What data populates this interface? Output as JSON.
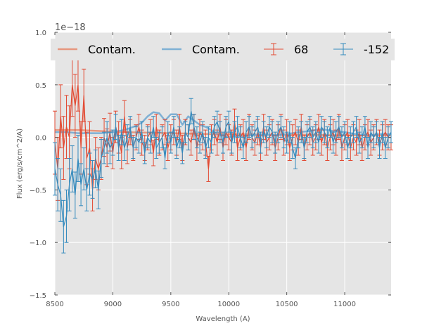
{
  "chart_data": {
    "type": "line",
    "title": "",
    "xlabel": "Wavelength (A)",
    "ylabel": "Flux (erg/s/cm^2/A)",
    "y_offset_label": "1e−18",
    "xlim": [
      8500,
      11400
    ],
    "ylim": [
      -1.5,
      1.0
    ],
    "xticks": [
      8500,
      9000,
      9500,
      10000,
      10500,
      11000
    ],
    "xtick_labels": [
      "8500",
      "9000",
      "9500",
      "10000",
      "10500",
      "11000"
    ],
    "yticks": [
      -1.5,
      -1.0,
      -0.5,
      0.0,
      0.5,
      1.0
    ],
    "ytick_labels": [
      "−1.5",
      "−1.0",
      "−0.5",
      "0.0",
      "0.5",
      "1.0"
    ],
    "grid": true,
    "legend_position": "top",
    "legend": [
      {
        "label": "Contam.",
        "kind": "line",
        "color": "#E6977F"
      },
      {
        "label": "Contam.",
        "kind": "line",
        "color": "#7FB0D4"
      },
      {
        "label": "68",
        "kind": "errorbar",
        "color": "#E24A33"
      },
      {
        "label": "-152",
        "kind": "errorbar",
        "color": "#348ABD"
      }
    ],
    "series": [
      {
        "name": "Contam.",
        "style": "line",
        "color": "#E6977F",
        "x": [
          8500,
          8700,
          8900,
          9100,
          9300,
          9500,
          9700,
          9900,
          10100,
          10300,
          10500,
          10700,
          10900,
          11100,
          11300,
          11400
        ],
        "y": [
          0.07,
          0.07,
          0.06,
          0.05,
          0.045,
          0.04,
          0.035,
          0.03,
          0.03,
          0.025,
          0.025,
          0.025,
          0.02,
          0.02,
          0.02,
          0.02
        ]
      },
      {
        "name": "Contam.",
        "style": "line",
        "color": "#7FB0D4",
        "x": [
          8500,
          8600,
          8700,
          8800,
          8900,
          9000,
          9100,
          9200,
          9250,
          9300,
          9350,
          9400,
          9450,
          9500,
          9550,
          9600,
          9650,
          9700,
          9750,
          9800,
          9850,
          9900,
          9950,
          10000,
          10050,
          10100,
          10200,
          10300,
          10400,
          10500,
          10600,
          10700,
          10800,
          10900,
          11000,
          11100,
          11200,
          11300,
          11400
        ],
        "y": [
          0.05,
          0.05,
          0.04,
          0.04,
          0.04,
          0.05,
          0.07,
          0.11,
          0.14,
          0.2,
          0.24,
          0.23,
          0.16,
          0.22,
          0.22,
          0.12,
          0.2,
          0.16,
          0.12,
          0.1,
          0.07,
          0.03,
          0.02,
          0.0,
          0.01,
          0.01,
          0.02,
          0.03,
          0.02,
          0.03,
          0.05,
          0.06,
          0.08,
          0.06,
          0.05,
          0.03,
          0.02,
          0.03,
          0.03
        ]
      },
      {
        "name": "68",
        "style": "errorbar",
        "color": "#E24A33",
        "x": [
          8500,
          8525,
          8550,
          8575,
          8600,
          8625,
          8650,
          8675,
          8700,
          8725,
          8750,
          8775,
          8800,
          8825,
          8850,
          8875,
          8900,
          8925,
          8950,
          8975,
          9000,
          9025,
          9050,
          9075,
          9100,
          9125,
          9150,
          9175,
          9200,
          9225,
          9250,
          9275,
          9300,
          9325,
          9350,
          9375,
          9400,
          9425,
          9450,
          9475,
          9500,
          9525,
          9550,
          9575,
          9600,
          9625,
          9650,
          9675,
          9700,
          9725,
          9750,
          9775,
          9800,
          9825,
          9850,
          9875,
          9900,
          9925,
          9950,
          9975,
          10000,
          10025,
          10050,
          10075,
          10100,
          10125,
          10150,
          10175,
          10200,
          10225,
          10250,
          10275,
          10300,
          10325,
          10350,
          10375,
          10400,
          10425,
          10450,
          10475,
          10500,
          10525,
          10550,
          10575,
          10600,
          10625,
          10650,
          10675,
          10700,
          10725,
          10750,
          10775,
          10800,
          10825,
          10850,
          10875,
          10900,
          10925,
          10950,
          10975,
          11000,
          11025,
          11050,
          11075,
          11100,
          11125,
          11150,
          11175,
          11200,
          11225,
          11250,
          11275,
          11300,
          11325,
          11350,
          11375,
          11400
        ],
        "y": [
          -0.05,
          -0.3,
          0.2,
          -0.1,
          0.1,
          0.0,
          0.5,
          0.3,
          0.5,
          -0.1,
          0.4,
          -0.2,
          -0.1,
          -0.5,
          -0.2,
          -0.3,
          -0.2,
          0.0,
          -0.1,
          0.05,
          -0.15,
          0.1,
          0.0,
          -0.15,
          0.2,
          -0.1,
          0.05,
          -0.1,
          0.0,
          0.1,
          -0.05,
          -0.1,
          0.0,
          0.05,
          -0.15,
          0.1,
          -0.05,
          0.0,
          0.05,
          -0.1,
          0.0,
          0.05,
          -0.05,
          0.1,
          -0.1,
          0.05,
          0.0,
          -0.05,
          0.1,
          -0.1,
          0.05,
          0.0,
          -0.05,
          -0.3,
          0.0,
          0.05,
          -0.05,
          0.1,
          -0.1,
          0.05,
          0.0,
          -0.05,
          0.15,
          -0.1,
          0.0,
          0.05,
          -0.1,
          0.1,
          0.0,
          -0.05,
          0.05,
          -0.1,
          0.1,
          -0.05,
          0.0,
          0.05,
          -0.1,
          0.0,
          0.1,
          -0.05,
          0.05,
          -0.1,
          0.0,
          0.05,
          -0.05,
          0.1,
          -0.1,
          0.0,
          0.05,
          -0.05,
          0.0,
          0.1,
          -0.05,
          0.05,
          -0.1,
          0.0,
          0.05,
          -0.05,
          0.1,
          -0.1,
          0.0,
          0.05,
          -0.1,
          0.0,
          -0.05,
          0.05,
          -0.1,
          0.0,
          0.05,
          -0.05,
          0.0,
          0.05,
          -0.05,
          0.0,
          0.05,
          0.0,
          0.0
        ],
        "err": [
          0.3,
          0.3,
          0.3,
          0.3,
          0.3,
          0.3,
          0.3,
          0.3,
          0.25,
          0.25,
          0.25,
          0.25,
          0.25,
          0.2,
          0.2,
          0.2,
          0.2,
          0.18,
          0.18,
          0.18,
          0.15,
          0.15,
          0.15,
          0.15,
          0.15,
          0.15,
          0.12,
          0.12,
          0.12,
          0.12,
          0.12,
          0.12,
          0.12,
          0.12,
          0.12,
          0.12,
          0.12,
          0.12,
          0.12,
          0.12,
          0.12,
          0.12,
          0.12,
          0.12,
          0.12,
          0.12,
          0.12,
          0.12,
          0.12,
          0.12,
          0.12,
          0.12,
          0.12,
          0.12,
          0.12,
          0.12,
          0.12,
          0.12,
          0.12,
          0.12,
          0.12,
          0.12,
          0.12,
          0.12,
          0.12,
          0.12,
          0.12,
          0.12,
          0.12,
          0.12,
          0.12,
          0.12,
          0.12,
          0.12,
          0.12,
          0.12,
          0.12,
          0.12,
          0.12,
          0.12,
          0.12,
          0.12,
          0.12,
          0.12,
          0.12,
          0.12,
          0.12,
          0.12,
          0.12,
          0.12,
          0.12,
          0.12,
          0.12,
          0.12,
          0.12,
          0.12,
          0.12,
          0.12,
          0.12,
          0.12,
          0.12,
          0.12,
          0.12,
          0.12,
          0.12,
          0.12,
          0.12,
          0.12,
          0.12,
          0.12,
          0.12,
          0.12,
          0.12,
          0.12,
          0.12,
          0.12,
          0.12
        ]
      },
      {
        "name": "-152",
        "style": "errorbar",
        "color": "#348ABD",
        "x": [
          8500,
          8525,
          8550,
          8575,
          8600,
          8625,
          8650,
          8675,
          8700,
          8725,
          8750,
          8775,
          8800,
          8825,
          8850,
          8875,
          8900,
          8925,
          8950,
          8975,
          9000,
          9025,
          9050,
          9075,
          9100,
          9125,
          9150,
          9175,
          9200,
          9225,
          9250,
          9275,
          9300,
          9325,
          9350,
          9375,
          9400,
          9425,
          9450,
          9475,
          9500,
          9525,
          9550,
          9575,
          9600,
          9625,
          9650,
          9675,
          9700,
          9725,
          9750,
          9775,
          9800,
          9825,
          9850,
          9875,
          9900,
          9925,
          9950,
          9975,
          10000,
          10025,
          10050,
          10075,
          10100,
          10125,
          10150,
          10175,
          10200,
          10225,
          10250,
          10275,
          10300,
          10325,
          10350,
          10375,
          10400,
          10425,
          10450,
          10475,
          10500,
          10525,
          10550,
          10575,
          10600,
          10625,
          10650,
          10675,
          10700,
          10725,
          10750,
          10775,
          10800,
          10825,
          10850,
          10875,
          10900,
          10925,
          10950,
          10975,
          11000,
          11025,
          11050,
          11075,
          11100,
          11125,
          11150,
          11175,
          11200,
          11225,
          11250,
          11275,
          11300,
          11325,
          11350,
          11375,
          11400
        ],
        "y": [
          -0.3,
          -0.45,
          -0.55,
          -0.85,
          -0.75,
          -0.45,
          -0.3,
          -0.55,
          -0.2,
          -0.45,
          -0.3,
          -0.5,
          -0.35,
          -0.4,
          -0.3,
          -0.5,
          -0.2,
          -0.1,
          0.0,
          -0.1,
          -0.05,
          0.1,
          -0.1,
          0.05,
          -0.1,
          0.0,
          0.1,
          -0.1,
          0.0,
          -0.05,
          0.05,
          -0.15,
          0.0,
          -0.05,
          0.1,
          -0.1,
          -0.05,
          0.0,
          -0.2,
          0.05,
          -0.05,
          0.1,
          -0.1,
          0.0,
          -0.15,
          0.05,
          0.0,
          0.25,
          0.1,
          0.0,
          -0.05,
          0.05,
          -0.1,
          0.0,
          -0.05,
          0.1,
          0.15,
          0.05,
          -0.05,
          0.1,
          0.15,
          -0.05,
          0.05,
          0.1,
          0.0,
          -0.1,
          0.05,
          0.1,
          0.0,
          0.05,
          0.1,
          -0.05,
          0.05,
          0.0,
          0.1,
          0.05,
          -0.05,
          0.05,
          0.1,
          0.0,
          -0.05,
          0.05,
          -0.1,
          -0.2,
          0.0,
          0.05,
          -0.1,
          0.05,
          0.1,
          0.0,
          0.05,
          -0.05,
          0.1,
          0.05,
          0.0,
          0.1,
          -0.05,
          0.05,
          0.1,
          0.0,
          0.05,
          -0.1,
          0.0,
          0.05,
          0.1,
          -0.05,
          0.0,
          0.1,
          -0.1,
          0.05,
          0.0,
          0.05,
          -0.1,
          0.05,
          -0.1,
          0.0,
          0.05
        ],
        "err": [
          0.25,
          0.25,
          0.25,
          0.25,
          0.25,
          0.25,
          0.22,
          0.22,
          0.22,
          0.2,
          0.2,
          0.2,
          0.2,
          0.18,
          0.18,
          0.18,
          0.18,
          0.15,
          0.15,
          0.15,
          0.12,
          0.12,
          0.12,
          0.12,
          0.12,
          0.12,
          0.1,
          0.1,
          0.1,
          0.1,
          0.1,
          0.1,
          0.1,
          0.1,
          0.1,
          0.1,
          0.1,
          0.1,
          0.1,
          0.1,
          0.1,
          0.1,
          0.1,
          0.1,
          0.1,
          0.1,
          0.12,
          0.12,
          0.12,
          0.1,
          0.1,
          0.1,
          0.1,
          0.1,
          0.1,
          0.1,
          0.1,
          0.1,
          0.1,
          0.1,
          0.1,
          0.1,
          0.1,
          0.1,
          0.1,
          0.1,
          0.1,
          0.1,
          0.1,
          0.1,
          0.1,
          0.1,
          0.1,
          0.1,
          0.1,
          0.1,
          0.1,
          0.1,
          0.1,
          0.1,
          0.1,
          0.1,
          0.1,
          0.1,
          0.1,
          0.1,
          0.1,
          0.1,
          0.1,
          0.1,
          0.1,
          0.1,
          0.1,
          0.1,
          0.1,
          0.1,
          0.1,
          0.1,
          0.1,
          0.1,
          0.1,
          0.1,
          0.1,
          0.1,
          0.1,
          0.1,
          0.1,
          0.1,
          0.1,
          0.1,
          0.1,
          0.1,
          0.1,
          0.1,
          0.1,
          0.1,
          0.1
        ]
      }
    ]
  }
}
